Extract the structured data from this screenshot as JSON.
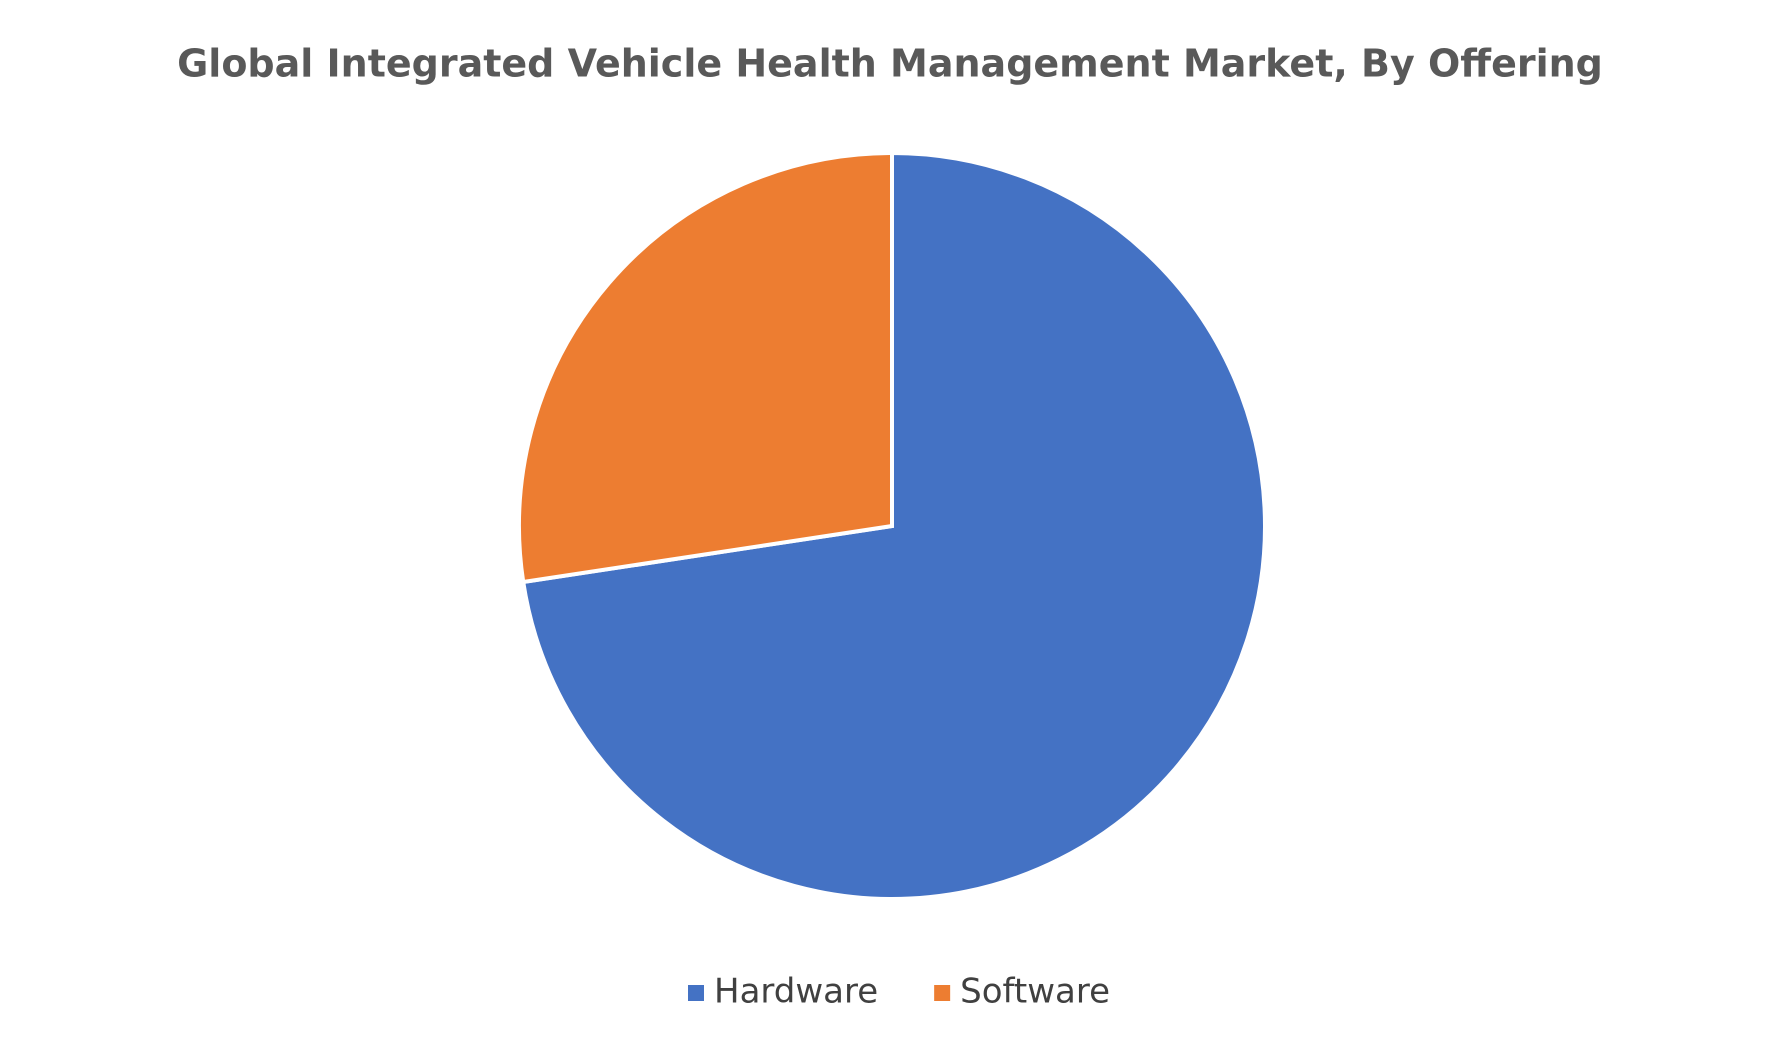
{
  "chart_data": {
    "type": "pie",
    "title": "Global Integrated Vehicle Health Management Market, By Offering",
    "categories": [
      "Hardware",
      "Software"
    ],
    "values": [
      72.6,
      27.4
    ],
    "colors": [
      "#4472c4",
      "#ed7d31"
    ],
    "legend": "bottom"
  }
}
